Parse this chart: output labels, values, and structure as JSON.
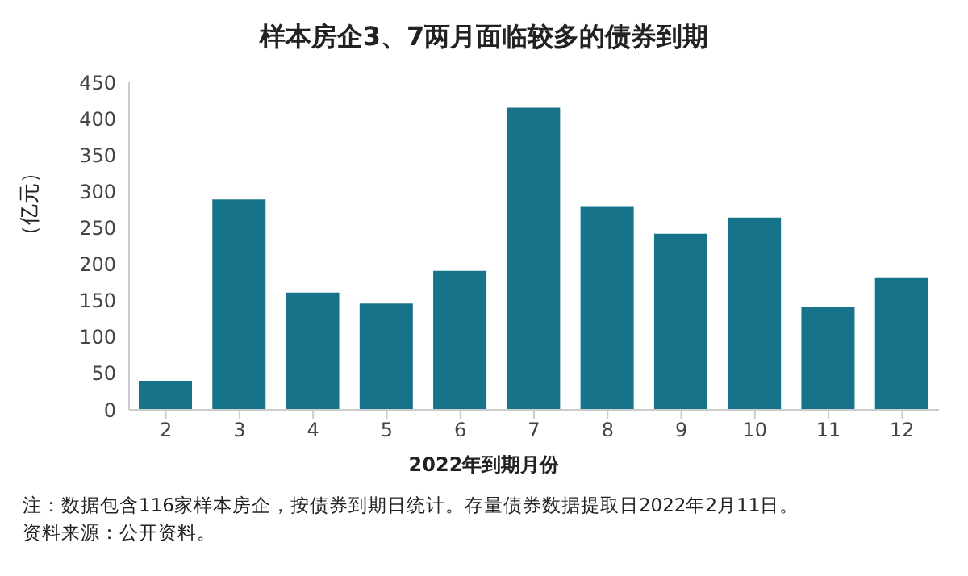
{
  "chart_data": {
    "type": "bar",
    "title": "样本房企3、7两月面临较多的债券到期",
    "xlabel": "2022年到期月份",
    "ylabel": "（亿元）",
    "categories": [
      "2",
      "3",
      "4",
      "5",
      "6",
      "7",
      "8",
      "9",
      "10",
      "11",
      "12"
    ],
    "values": [
      40,
      289,
      161,
      146,
      191,
      415,
      280,
      242,
      264,
      141,
      182
    ],
    "color": "#167389",
    "ylim": [
      0,
      450
    ],
    "yticks": [
      0,
      50,
      100,
      150,
      200,
      250,
      300,
      350,
      400,
      450
    ],
    "grid": false,
    "annotations": [
      "注：数据包含116家样本房企，按债券到期日统计。存量债券数据提取日2022年2月11日。",
      "资料来源：公开资料。"
    ]
  }
}
